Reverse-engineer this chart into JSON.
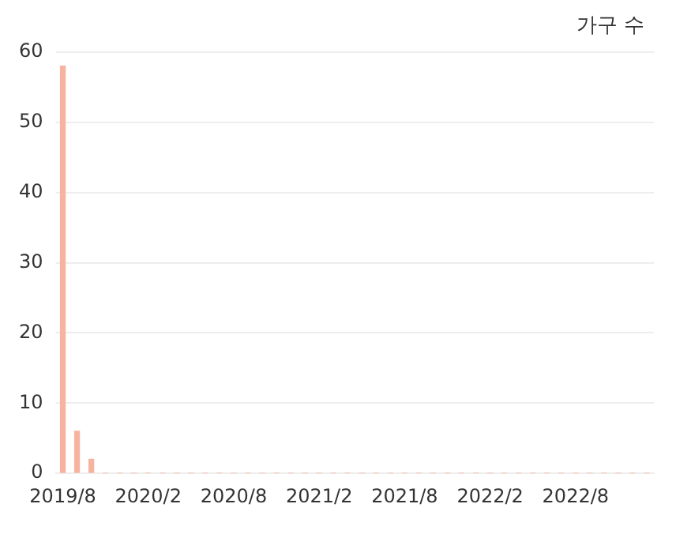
{
  "chart_data": {
    "type": "bar",
    "categories": [
      "2019/8",
      null,
      null,
      null,
      null,
      null,
      "2020/2",
      null,
      null,
      null,
      null,
      null,
      "2020/8",
      null,
      null,
      null,
      null,
      null,
      "2021/2",
      null,
      null,
      null,
      null,
      null,
      "2021/8",
      null,
      null,
      null,
      null,
      null,
      "2022/2",
      null,
      null,
      null,
      null,
      null,
      "2022/8",
      null,
      null,
      null,
      null,
      null
    ],
    "series": [
      {
        "name": "가구 수",
        "color": "#f6b4a0",
        "values": [
          58,
          6,
          2,
          0,
          0,
          0,
          0,
          0,
          0,
          0,
          0,
          0,
          0,
          0,
          0,
          0,
          0,
          0,
          0,
          0,
          0,
          0,
          0,
          0,
          0,
          0,
          0,
          0,
          0,
          0,
          0,
          0,
          0,
          0,
          0,
          0,
          0,
          0,
          0,
          0,
          0,
          0
        ]
      }
    ],
    "ylim": [
      0,
      60
    ],
    "yticks": [
      0,
      10,
      20,
      30,
      40,
      50,
      60
    ],
    "grid": "y",
    "legend": "top right"
  }
}
